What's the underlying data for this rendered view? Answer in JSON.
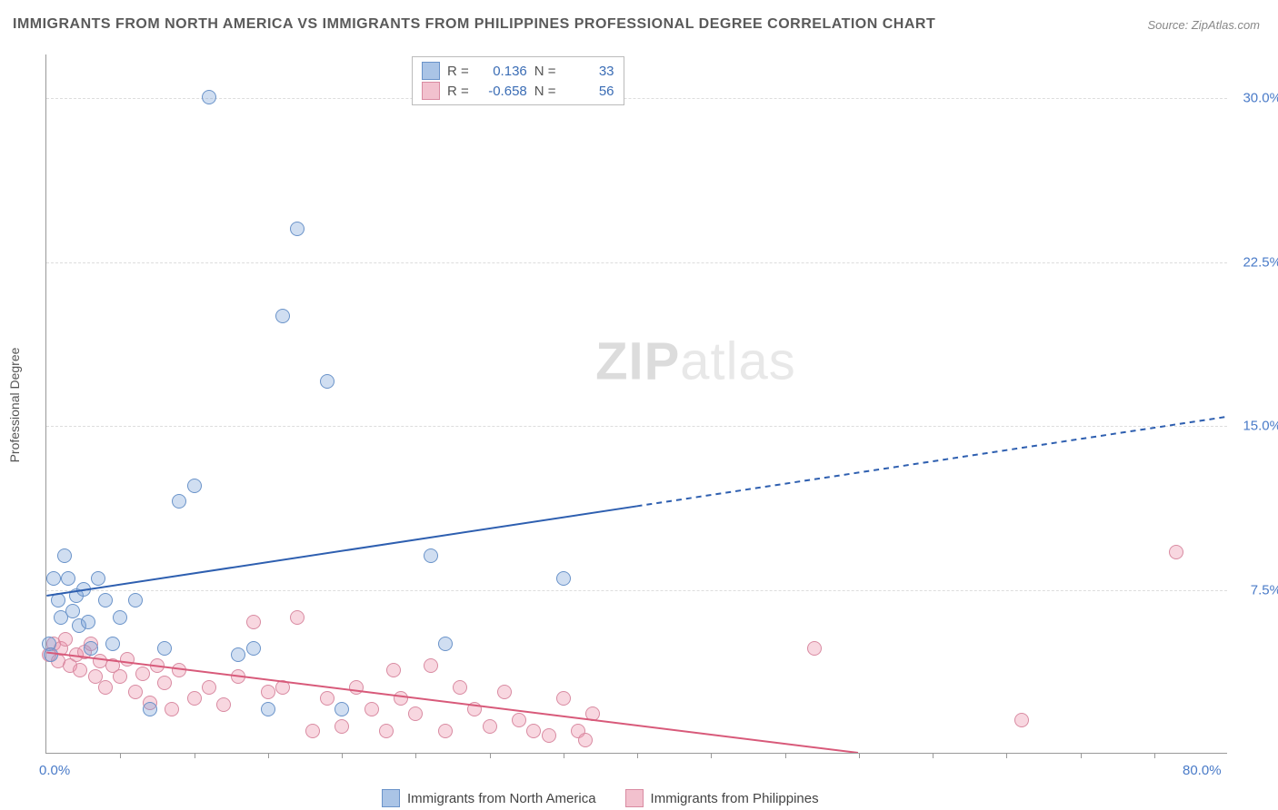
{
  "title": "IMMIGRANTS FROM NORTH AMERICA VS IMMIGRANTS FROM PHILIPPINES PROFESSIONAL DEGREE CORRELATION CHART",
  "source": "Source: ZipAtlas.com",
  "y_axis_title": "Professional Degree",
  "watermark_bold": "ZIP",
  "watermark_light": "atlas",
  "chart": {
    "type": "scatter",
    "xlim": [
      0,
      80
    ],
    "ylim": [
      0,
      32
    ],
    "x_ticks_minor": [
      5,
      10,
      15,
      20,
      25,
      30,
      35,
      40,
      45,
      50,
      55,
      60,
      65,
      70,
      75
    ],
    "x_tick_labels": [
      {
        "pos": 0,
        "label": "0.0%"
      },
      {
        "pos": 80,
        "label": "80.0%"
      }
    ],
    "y_tick_labels": [
      {
        "pos": 7.5,
        "label": "7.5%"
      },
      {
        "pos": 15.0,
        "label": "15.0%"
      },
      {
        "pos": 22.5,
        "label": "22.5%"
      },
      {
        "pos": 30.0,
        "label": "30.0%"
      }
    ],
    "grid_color": "#dddddd",
    "background_color": "#ffffff"
  },
  "series": {
    "north_america": {
      "label": "Immigrants from North America",
      "color_fill": "rgba(120,160,215,0.35)",
      "color_stroke": "#6a93c9",
      "swatch_fill": "#aac4e6",
      "swatch_border": "#6a93c9",
      "R": "0.136",
      "N": "33",
      "trend": {
        "x1": 0,
        "y1": 7.2,
        "x2": 40,
        "y2": 11.3,
        "x2_ext": 80,
        "y2_ext": 15.4,
        "color": "#2e5fb0",
        "width": 2
      },
      "points": [
        [
          0.2,
          5.0
        ],
        [
          0.3,
          4.5
        ],
        [
          0.5,
          8.0
        ],
        [
          0.8,
          7.0
        ],
        [
          1.0,
          6.2
        ],
        [
          1.2,
          9.0
        ],
        [
          1.5,
          8.0
        ],
        [
          1.8,
          6.5
        ],
        [
          2.0,
          7.2
        ],
        [
          2.2,
          5.8
        ],
        [
          2.5,
          7.5
        ],
        [
          2.8,
          6.0
        ],
        [
          3.0,
          4.8
        ],
        [
          3.5,
          8.0
        ],
        [
          4.0,
          7.0
        ],
        [
          4.5,
          5.0
        ],
        [
          5.0,
          6.2
        ],
        [
          6.0,
          7.0
        ],
        [
          7.0,
          2.0
        ],
        [
          8.0,
          4.8
        ],
        [
          9.0,
          11.5
        ],
        [
          10.0,
          12.2
        ],
        [
          11.0,
          30.0
        ],
        [
          13.0,
          4.5
        ],
        [
          14.0,
          4.8
        ],
        [
          15.0,
          2.0
        ],
        [
          16.0,
          20.0
        ],
        [
          17.0,
          24.0
        ],
        [
          19.0,
          17.0
        ],
        [
          20.0,
          2.0
        ],
        [
          26.0,
          9.0
        ],
        [
          27.0,
          5.0
        ],
        [
          35.0,
          8.0
        ]
      ]
    },
    "philippines": {
      "label": "Immigrants from Philippines",
      "color_fill": "rgba(235,140,165,0.35)",
      "color_stroke": "#d98ba2",
      "swatch_fill": "#f2c1ce",
      "swatch_border": "#d98ba2",
      "R": "-0.658",
      "N": "56",
      "trend": {
        "x1": 0,
        "y1": 4.6,
        "x2": 55,
        "y2": 0.0,
        "color": "#d85a7a",
        "width": 2
      },
      "points": [
        [
          0.2,
          4.5
        ],
        [
          0.5,
          5.0
        ],
        [
          0.8,
          4.2
        ],
        [
          1.0,
          4.8
        ],
        [
          1.3,
          5.2
        ],
        [
          1.6,
          4.0
        ],
        [
          2.0,
          4.5
        ],
        [
          2.3,
          3.8
        ],
        [
          2.6,
          4.6
        ],
        [
          3.0,
          5.0
        ],
        [
          3.3,
          3.5
        ],
        [
          3.6,
          4.2
        ],
        [
          4.0,
          3.0
        ],
        [
          4.5,
          4.0
        ],
        [
          5.0,
          3.5
        ],
        [
          5.5,
          4.3
        ],
        [
          6.0,
          2.8
        ],
        [
          6.5,
          3.6
        ],
        [
          7.0,
          2.3
        ],
        [
          7.5,
          4.0
        ],
        [
          8.0,
          3.2
        ],
        [
          8.5,
          2.0
        ],
        [
          9.0,
          3.8
        ],
        [
          10.0,
          2.5
        ],
        [
          11.0,
          3.0
        ],
        [
          12.0,
          2.2
        ],
        [
          13.0,
          3.5
        ],
        [
          14.0,
          6.0
        ],
        [
          15.0,
          2.8
        ],
        [
          16.0,
          3.0
        ],
        [
          17.0,
          6.2
        ],
        [
          18.0,
          1.0
        ],
        [
          19.0,
          2.5
        ],
        [
          20.0,
          1.2
        ],
        [
          21.0,
          3.0
        ],
        [
          22.0,
          2.0
        ],
        [
          23.0,
          1.0
        ],
        [
          23.5,
          3.8
        ],
        [
          24.0,
          2.5
        ],
        [
          25.0,
          1.8
        ],
        [
          26.0,
          4.0
        ],
        [
          27.0,
          1.0
        ],
        [
          28.0,
          3.0
        ],
        [
          29.0,
          2.0
        ],
        [
          30.0,
          1.2
        ],
        [
          31.0,
          2.8
        ],
        [
          32.0,
          1.5
        ],
        [
          33.0,
          1.0
        ],
        [
          34.0,
          0.8
        ],
        [
          35.0,
          2.5
        ],
        [
          36.0,
          1.0
        ],
        [
          36.5,
          0.6
        ],
        [
          37.0,
          1.8
        ],
        [
          52.0,
          4.8
        ],
        [
          66.0,
          1.5
        ],
        [
          76.5,
          9.2
        ]
      ]
    }
  },
  "legend_top_labels": {
    "R": "R =",
    "N": "N ="
  }
}
